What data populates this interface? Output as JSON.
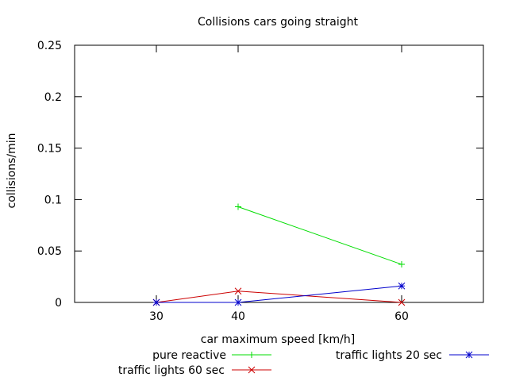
{
  "chart_data": {
    "type": "line",
    "title": "Collisions cars going straight",
    "xlabel": "car maximum speed [km/h]",
    "ylabel": "collisions/min",
    "xlim": [
      20,
      70
    ],
    "ylim": [
      0,
      0.25
    ],
    "x_ticks": [
      30,
      40,
      60
    ],
    "x_tick_labels": [
      "30",
      "40",
      "60"
    ],
    "y_ticks": [
      0,
      0.05,
      0.1,
      0.15,
      0.2,
      0.25
    ],
    "y_tick_labels": [
      "0",
      "0.05",
      "0.1",
      "0.15",
      "0.2",
      "0.25"
    ],
    "grid": false,
    "legend_position": "bottom",
    "series": [
      {
        "name": "pure reactive",
        "color": "#00dd00",
        "marker": "plus",
        "x": [
          40,
          60
        ],
        "y": [
          0.093,
          0.037
        ]
      },
      {
        "name": "traffic lights 60 sec",
        "color": "#cc0000",
        "marker": "cross",
        "x": [
          30,
          40,
          60
        ],
        "y": [
          0,
          0.011,
          0
        ]
      },
      {
        "name": "traffic lights 20 sec",
        "color": "#0000cc",
        "marker": "star",
        "x": [
          30,
          40,
          60
        ],
        "y": [
          0,
          0,
          0.016
        ]
      }
    ]
  }
}
